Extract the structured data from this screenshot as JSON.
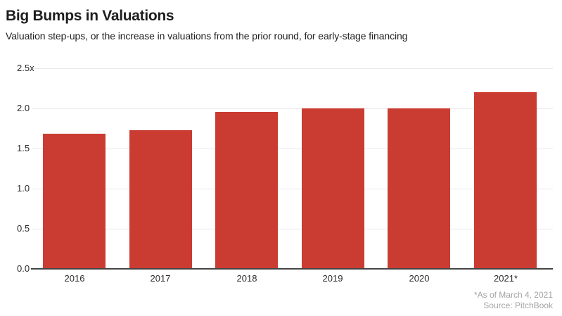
{
  "header": {
    "title": "Big Bumps in Valuations",
    "subtitle": "Valuation step-ups, or the increase in valuations from the prior round, for early-stage financing"
  },
  "chart_data": {
    "type": "bar",
    "title": "Big Bumps in Valuations",
    "subtitle": "Valuation step-ups, or the increase in valuations from the prior round, for early-stage financing",
    "categories": [
      "2016",
      "2017",
      "2018",
      "2019",
      "2020",
      "2021*"
    ],
    "values": [
      1.68,
      1.73,
      1.96,
      2.0,
      2.0,
      2.2
    ],
    "xlabel": "",
    "ylabel": "",
    "ylim": [
      0,
      2.5
    ],
    "ytick_interval": 0.5,
    "ytick_labels": [
      "0.0",
      "0.5",
      "1.0",
      "1.5",
      "2.0",
      "2.5x"
    ],
    "grid": "horizontal",
    "legend_position": "none",
    "bar_color": "#ca3c31",
    "gridline_color": "#e9e9e9",
    "baseline_color": "#454545"
  },
  "footer": {
    "footnote": "*As of March 4, 2021",
    "source": "Source: PitchBook"
  }
}
